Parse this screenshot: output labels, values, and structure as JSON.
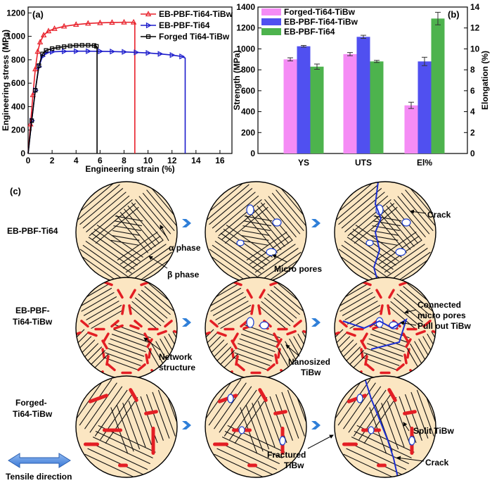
{
  "panel_a": {
    "label": "(a)",
    "xlabel": "Engineering strain (%)",
    "ylabel": "Engineering stress (MPa)",
    "legend": [
      "EB-PBF-Ti64-TiBw",
      "EB-PBF-Ti64",
      "Forged Ti64-TiBw"
    ]
  },
  "panel_b": {
    "label": "(b)",
    "ylabel_left": "Strength (MPa)",
    "ylabel_right": "Elongation (%)",
    "legend": [
      "Forged-Ti64-TiBw",
      "EB-PBF-Ti64-TiBw",
      "EB-PBF-Ti64"
    ]
  },
  "panel_c": {
    "label": "(c)",
    "rows": [
      "EB-PBF-Ti64",
      "EB-PBF-Ti64-TiBw",
      "Forged-Ti64-TiBw"
    ],
    "row_labels": {
      "r1_a": "EB-PBF-Ti64",
      "r2_a": "EB-PBF-",
      "r2_b": "Ti64-TiBw",
      "r3_a": "Forged-",
      "r3_b": "Ti64-TiBw"
    },
    "annotations": {
      "alpha": "α phase",
      "beta": "β phase",
      "micro_pores": "Micro pores",
      "crack1": "Crack",
      "network_a": "Network",
      "network_b": "structure",
      "nano_a": "Nanosized",
      "nano_b": "TiBw",
      "connected_a": "Connected",
      "connected_b": "micro pores",
      "pullout": "Pull out TiBw",
      "split": "Split TiBw",
      "fractured_a": "Fractured",
      "fractured_b": "TiBw",
      "crack2": "Crack",
      "tensile": "Tensile direction"
    }
  },
  "chart_data": [
    {
      "type": "line",
      "xlabel": "Engineering strain (%)",
      "ylabel": "Engineering stress (MPa)",
      "xlim": [
        0,
        17
      ],
      "ylim": [
        0,
        1250
      ],
      "xticks": [
        0,
        2,
        4,
        6,
        8,
        10,
        12,
        14,
        16
      ],
      "yticks": [
        0,
        200,
        400,
        600,
        800,
        1000,
        1200
      ],
      "legend_position": "top-right",
      "series": [
        {
          "name": "EB-PBF-Ti64-TiBw",
          "color": "#e8202a",
          "x": [
            0,
            0.2,
            0.4,
            0.6,
            0.8,
            1.0,
            1.3,
            1.7,
            2.2,
            3.0,
            4.0,
            5.0,
            6.0,
            7.0,
            8.0,
            8.8,
            8.9,
            8.9
          ],
          "y": [
            0,
            250,
            500,
            720,
            870,
            950,
            1010,
            1045,
            1065,
            1085,
            1100,
            1110,
            1115,
            1118,
            1120,
            1120,
            1110,
            0
          ]
        },
        {
          "name": "EB-PBF-Ti64",
          "color": "#1c1ccc",
          "x": [
            0,
            0.3,
            0.6,
            0.9,
            1.2,
            1.5,
            2.0,
            3.0,
            4.0,
            5.0,
            6.0,
            7.0,
            8.0,
            9.0,
            10.0,
            11.0,
            12.0,
            12.8,
            13.1,
            13.1
          ],
          "y": [
            0,
            280,
            540,
            740,
            830,
            860,
            868,
            872,
            873,
            873,
            872,
            870,
            867,
            863,
            858,
            850,
            840,
            828,
            815,
            0
          ]
        },
        {
          "name": "Forged Ti64-TiBw",
          "color": "#000000",
          "x": [
            0,
            0.3,
            0.6,
            0.9,
            1.2,
            1.5,
            2.0,
            2.5,
            3.0,
            3.5,
            4.0,
            4.5,
            5.0,
            5.5,
            5.7,
            5.75,
            5.75
          ],
          "y": [
            0,
            280,
            540,
            750,
            850,
            880,
            895,
            905,
            912,
            918,
            922,
            924,
            924,
            922,
            915,
            905,
            0
          ]
        }
      ]
    },
    {
      "type": "bar",
      "categories": [
        "YS",
        "UTS",
        "El%"
      ],
      "ylim_left": [
        0,
        1400
      ],
      "ylim_right": [
        0,
        14
      ],
      "yticks_left": [
        0,
        200,
        400,
        600,
        800,
        1000,
        1200,
        1400
      ],
      "yticks_right": [
        0,
        2,
        4,
        6,
        8,
        10,
        12,
        14
      ],
      "legend_position": "top-left",
      "series": [
        {
          "name": "Forged-Ti64-TiBw",
          "color": "#f58cf5",
          "values": [
            900,
            950,
            4.6
          ],
          "errors": [
            15,
            15,
            0.3
          ]
        },
        {
          "name": "EB-PBF-Ti64-TiBw",
          "color": "#5050f0",
          "values": [
            1025,
            1115,
            8.8
          ],
          "errors": [
            8,
            15,
            0.4
          ]
        },
        {
          "name": "EB-PBF-Ti64",
          "color": "#4db34d",
          "values": [
            830,
            880,
            12.9
          ],
          "errors": [
            25,
            10,
            0.6
          ]
        }
      ],
      "axis_note": "El% plotted on right axis (Elongation %)"
    }
  ]
}
